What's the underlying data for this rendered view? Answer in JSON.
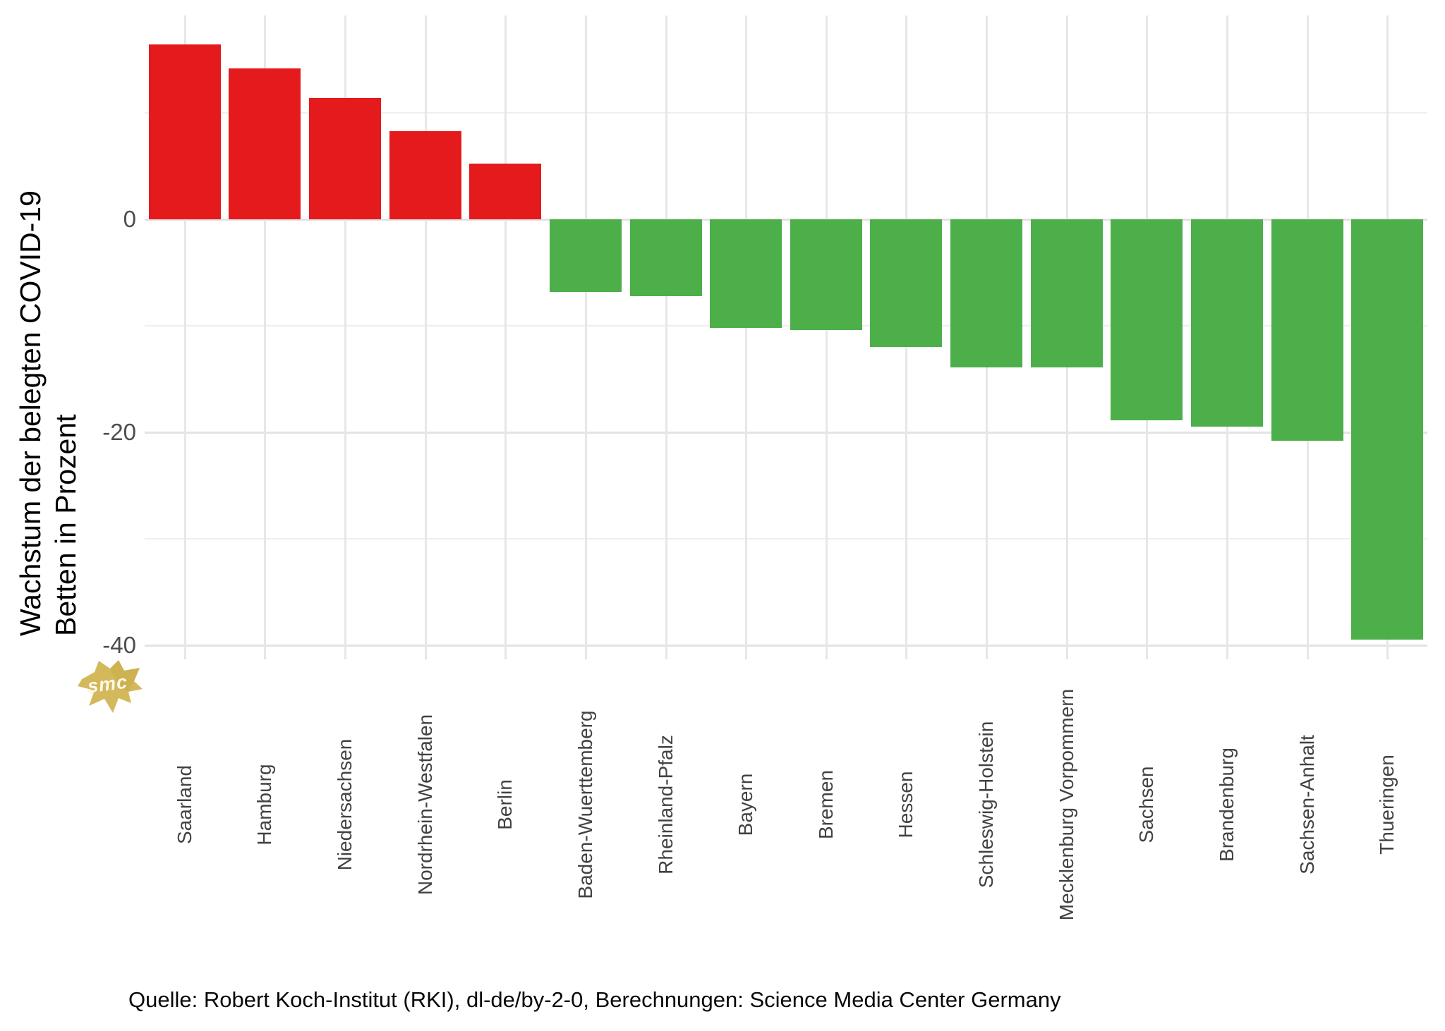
{
  "y_axis": {
    "title_line1": "Wachstum der belegten COVID-19",
    "title_line2": "Betten in Prozent"
  },
  "source_line": "Quelle: Robert Koch-Institut (RKI), dl-de/by-2-0, Berechnungen: Science Media Center Germany",
  "watermark": {
    "text": "smc",
    "color": "#d2b553"
  },
  "chart_data": {
    "type": "bar",
    "title": "",
    "xlabel": "",
    "ylabel": "Wachstum der belegten COVID-19 Betten in Prozent",
    "categories": [
      "Saarland",
      "Hamburg",
      "Niedersachsen",
      "Nordrhein-Westfalen",
      "Berlin",
      "Baden-Wuerttemberg",
      "Rheinland-Pfalz",
      "Bayern",
      "Bremen",
      "Hessen",
      "Schleswig-Holstein",
      "Mecklenburg Vorpommern",
      "Sachsen",
      "Brandenburg",
      "Sachsen-Anhalt",
      "Thueringen"
    ],
    "values": [
      16.4,
      14.2,
      11.4,
      8.3,
      5.2,
      -6.8,
      -7.2,
      -10.2,
      -10.4,
      -12.0,
      -13.9,
      -13.9,
      -18.9,
      -19.5,
      -20.8,
      -39.5
    ],
    "ylim": [
      -41,
      19
    ],
    "y_major_gridlines": [
      0,
      -20,
      -40
    ],
    "y_minor_gridlines": [
      10,
      -10,
      -30
    ],
    "y_tick_labels": [
      "0",
      "-20",
      "-40"
    ],
    "grid": true,
    "legend": "none",
    "positive_color": "#e41a1c",
    "negative_color": "#4daf4a",
    "color_rule": "positive values red, negative values green"
  }
}
